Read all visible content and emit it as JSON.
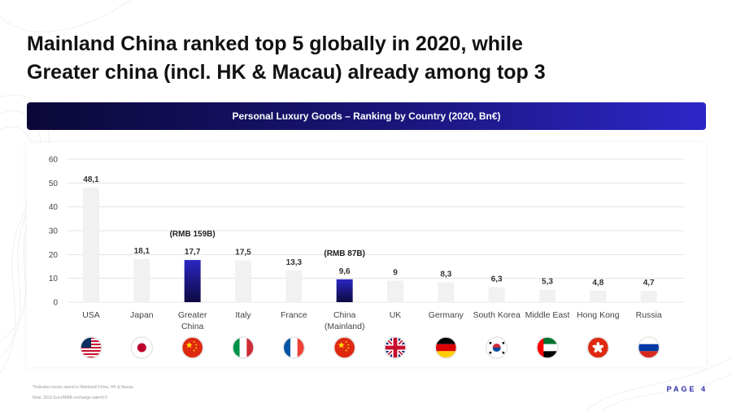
{
  "slide": {
    "title_line1": "Mainland China ranked top 5 globally in 2020, while",
    "title_line2": "Greater china (incl. HK & Macau) already among top 3",
    "banner": "Personal Luxury Goods – Ranking by Country (2020, Bn€)",
    "footnote1": "*Indicates luxury spend in Mainland China, HK & Macau",
    "footnote2": "Note: 2010 Euro/RMB exchange rate=9.0",
    "page_label": "PAGE 4"
  },
  "chart_data": {
    "type": "bar",
    "title": "Personal Luxury Goods – Ranking by Country (2020, Bn€)",
    "ylim": [
      0,
      60
    ],
    "yticks": [
      0,
      10,
      20,
      30,
      40,
      50,
      60
    ],
    "grid": true,
    "categories": [
      [
        "USA"
      ],
      [
        "Japan"
      ],
      [
        "Greater",
        "China"
      ],
      [
        "Italy"
      ],
      [
        "France"
      ],
      [
        "China",
        "(Mainland)"
      ],
      [
        "UK"
      ],
      [
        "Germany"
      ],
      [
        "South Korea"
      ],
      [
        "Middle East"
      ],
      [
        "Hong Kong"
      ],
      [
        "Russia"
      ]
    ],
    "values": [
      48.1,
      18.1,
      17.7,
      17.5,
      13.3,
      9.6,
      9,
      8.3,
      6.3,
      5.3,
      4.8,
      4.7
    ],
    "value_labels": [
      "48,1",
      "18,1",
      "17,7",
      "17,5",
      "13,3",
      "9,6",
      "9",
      "8,3",
      "6,3",
      "5,3",
      "4,8",
      "4,7"
    ],
    "highlighted": [
      false,
      false,
      true,
      false,
      false,
      true,
      false,
      false,
      false,
      false,
      false,
      false
    ],
    "annotations": [
      "",
      "",
      "(RMB 159B)",
      "",
      "",
      "(RMB 87B)",
      "",
      "",
      "",
      "",
      "",
      ""
    ],
    "flags": [
      "usa-flag-icon",
      "japan-flag-icon",
      "china-flag-icon",
      "italy-flag-icon",
      "france-flag-icon",
      "china-flag-icon",
      "uk-flag-icon",
      "germany-flag-icon",
      "south-korea-flag-icon",
      "uae-flag-icon",
      "hong-kong-flag-icon",
      "russia-flag-icon"
    ],
    "colors": {
      "bar": "#f1f1f1",
      "highlight_top": "#2b27c4",
      "highlight_bottom": "#0c0940",
      "grid": "#dddddd",
      "text": "#333333"
    }
  }
}
